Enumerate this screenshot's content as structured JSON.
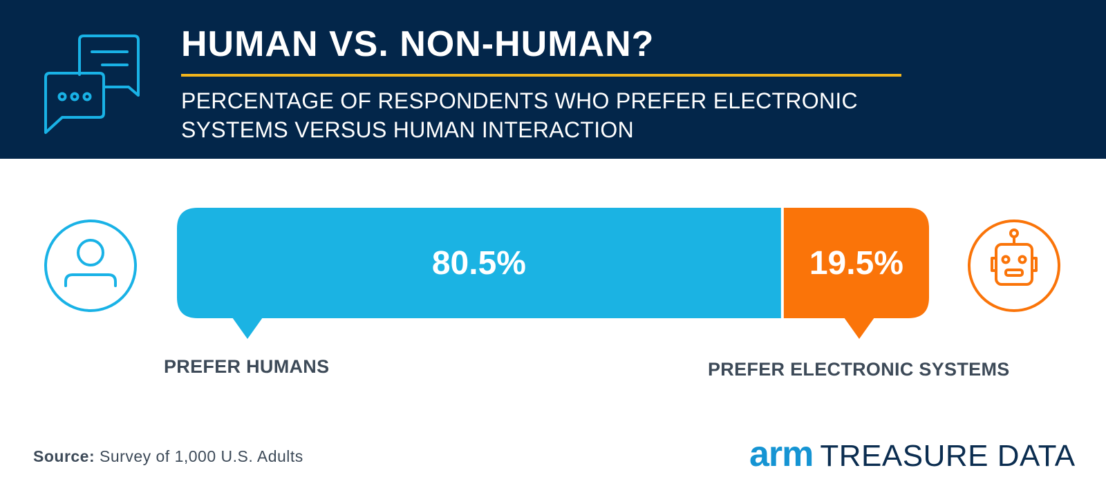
{
  "header": {
    "title": "HUMAN VS. NON-HUMAN?",
    "subtitle": "PERCENTAGE OF RESPONDENTS WHO PREFER ELECTRONIC SYSTEMS VERSUS HUMAN INTERACTION",
    "icon": "chat-bubbles-icon"
  },
  "chart_data": {
    "type": "bar",
    "orientation": "horizontal-stacked",
    "unit": "%",
    "title": "HUMAN VS. NON-HUMAN?",
    "subtitle": "PERCENTAGE OF RESPONDENTS WHO PREFER ELECTRONIC SYSTEMS VERSUS HUMAN INTERACTION",
    "categories": [
      "PREFER HUMANS",
      "PREFER ELECTRONIC SYSTEMS"
    ],
    "values": [
      80.5,
      19.5
    ],
    "value_labels": [
      "80.5%",
      "19.5%"
    ],
    "colors": [
      "#1bb3e3",
      "#fa7409"
    ],
    "icons": [
      "person-icon",
      "robot-icon"
    ],
    "xlim": [
      0,
      100
    ],
    "grid": false,
    "legend": "none"
  },
  "footer": {
    "source_label": "Source:",
    "source_text": "Survey of 1,000 U.S. Adults",
    "logo_arm": "arm",
    "logo_rest": "TREASURE DATA"
  },
  "colors": {
    "header_bg": "#03264a",
    "accent_rule": "#f2b51c",
    "text_dark": "#3d4a58",
    "logo_blue": "#1594d3"
  }
}
